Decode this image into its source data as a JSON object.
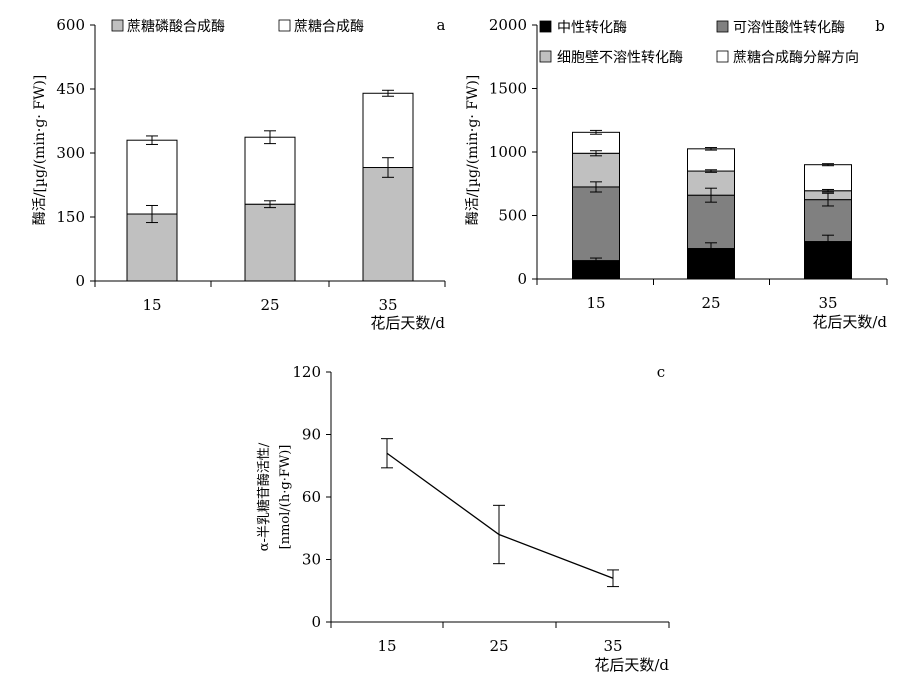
{
  "chart_data": [
    {
      "panel": "a",
      "type": "bar",
      "stacked": true,
      "categories": [
        "15",
        "25",
        "35"
      ],
      "xlabel": "花后天数/d",
      "ylabel": "酶活/[µg/(min·g· FW)]",
      "ylim": [
        0,
        600
      ],
      "yticks": [
        "0",
        "150",
        "300",
        "450",
        "600"
      ],
      "legend_position": "top",
      "series": [
        {
          "name": "蔗糖磷酸合成酶",
          "color": "#c0c0c0",
          "values": [
            157,
            180,
            266
          ],
          "errors": [
            20,
            8,
            23
          ]
        },
        {
          "name": "蔗糖合成酶",
          "color": "#ffffff",
          "values": [
            173,
            157,
            174
          ],
          "errors": [
            10,
            15,
            7
          ]
        }
      ]
    },
    {
      "panel": "b",
      "type": "bar",
      "stacked": true,
      "categories": [
        "15",
        "25",
        "35"
      ],
      "xlabel": "花后天数/d",
      "ylabel": "酶活/[µg/(min·g· FW)]",
      "ylim": [
        0,
        2000
      ],
      "yticks": [
        "0",
        "500",
        "1000",
        "1500",
        "2000"
      ],
      "legend_position": "top",
      "series": [
        {
          "name": "中性转化酶",
          "color": "#000000",
          "values": [
            145,
            240,
            295
          ],
          "errors": [
            20,
            45,
            50
          ]
        },
        {
          "name": "可溶性酸性转化酶",
          "color": "#808080",
          "values": [
            580,
            420,
            330
          ],
          "errors": [
            40,
            55,
            50
          ]
        },
        {
          "name": "细胞壁不溶性转化酶",
          "color": "#c0c0c0",
          "values": [
            265,
            190,
            70
          ],
          "errors": [
            20,
            10,
            10
          ]
        },
        {
          "name": "蔗糖合成酶分解方向",
          "color": "#ffffff",
          "values": [
            165,
            175,
            205
          ],
          "errors": [
            15,
            10,
            8
          ]
        }
      ]
    },
    {
      "panel": "c",
      "type": "line",
      "x": [
        "15",
        "25",
        "35"
      ],
      "xlabel": "花后天数/d",
      "ylabel_line1": "α-半乳糖苷酶活性/",
      "ylabel_line2": "[nmol/(h·g·FW)]",
      "ylim": [
        0,
        120
      ],
      "yticks": [
        "0",
        "30",
        "60",
        "90",
        "120"
      ],
      "series": [
        {
          "values": [
            81,
            42,
            21
          ],
          "errors": [
            7,
            14,
            4
          ]
        }
      ]
    }
  ]
}
